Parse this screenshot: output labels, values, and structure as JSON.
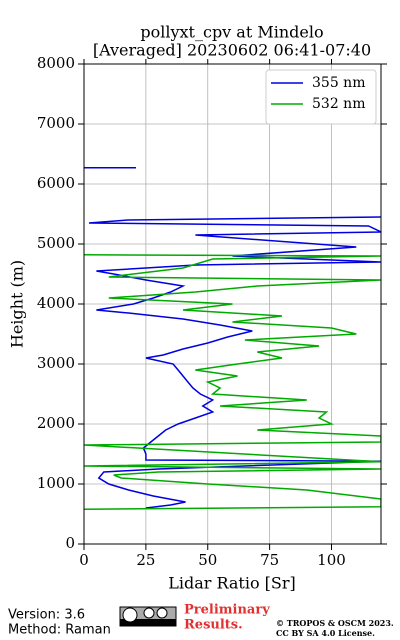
{
  "chart_data": {
    "type": "profile",
    "title": "pollyxt_cpv at Mindelo",
    "subtitle": "[Averaged] 20230602 06:41-07:40",
    "x_label": "Lidar Ratio [Sr]",
    "y_label": "Height (m)",
    "xlim": [
      0,
      120
    ],
    "xticks": [
      0,
      25,
      50,
      75,
      100
    ],
    "ylim": [
      0,
      8000
    ],
    "yticks": [
      0,
      1000,
      2000,
      3000,
      4000,
      5000,
      6000,
      7000,
      8000
    ],
    "grid": true,
    "legend": "upper-right",
    "series": [
      {
        "name": "355 nm",
        "color": "#0000e0",
        "heights": [
          600,
          650,
          700,
          800,
          900,
          1000,
          1100,
          1200,
          1250,
          1380,
          1400,
          1500,
          1600,
          1700,
          1800,
          1900,
          2000,
          2100,
          2200,
          2300,
          2400,
          2500,
          2600,
          2700,
          2800,
          2900,
          3000,
          3100,
          3150,
          3250,
          3350,
          3450,
          3550,
          3650,
          3750,
          3850,
          3900,
          4000,
          4100,
          4200,
          4300,
          4400,
          4500,
          4550,
          4650,
          4700,
          4800,
          4950,
          5150,
          5200,
          5300,
          5350,
          5400,
          5450,
          null,
          6270,
          6270
        ],
        "values": [
          25,
          35,
          41,
          28,
          18,
          10,
          6,
          8,
          30,
          120,
          25,
          25,
          24,
          27,
          30,
          33,
          38,
          45,
          52,
          48,
          52,
          47,
          44,
          42,
          40,
          38,
          36,
          25,
          32,
          40,
          50,
          58,
          68,
          55,
          40,
          18,
          5,
          20,
          28,
          35,
          40,
          25,
          12,
          5,
          45,
          120,
          60,
          110,
          45,
          120,
          115,
          2,
          18,
          120,
          null,
          0,
          21
        ]
      },
      {
        "name": "532 nm",
        "color": "#00aa00",
        "heights": [
          580,
          620,
          700,
          750,
          900,
          1000,
          1100,
          1150,
          1200,
          1250,
          1300,
          1370,
          1650,
          1700,
          1800,
          1900,
          2000,
          2100,
          2200,
          2300,
          2400,
          2500,
          2600,
          2700,
          2800,
          2900,
          3000,
          3100,
          3200,
          3300,
          3400,
          3500,
          3600,
          3700,
          3800,
          3900,
          4000,
          4100,
          4200,
          4300,
          4400,
          4450,
          4600,
          4750,
          4800,
          4820
        ],
        "values": [
          0,
          120,
          120,
          120,
          90,
          50,
          15,
          12,
          30,
          120,
          0,
          120,
          0,
          120,
          120,
          70,
          100,
          95,
          98,
          55,
          90,
          52,
          55,
          50,
          62,
          45,
          62,
          80,
          70,
          95,
          65,
          110,
          100,
          60,
          80,
          40,
          60,
          10,
          45,
          70,
          120,
          10,
          40,
          52,
          120,
          0
        ]
      }
    ]
  },
  "footer": {
    "version": "Version: 3.6",
    "method": "Method: Raman",
    "preliminary": [
      "Preliminary",
      "Results."
    ],
    "copyright": "© TROPOS & OSCM 2023.",
    "license": "CC BY SA 4.0 License."
  }
}
